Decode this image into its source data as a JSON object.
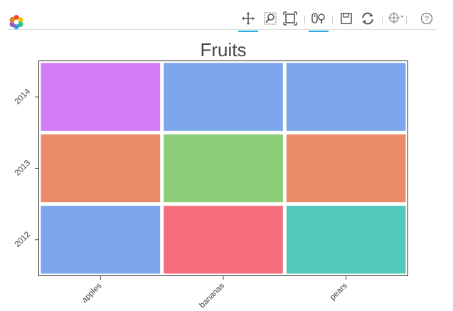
{
  "toolbar": {
    "logo": "bokeh-logo-icon",
    "tools": [
      {
        "name": "pan-tool",
        "icon": "pan-icon",
        "active": true
      },
      {
        "name": "box-zoom-tool",
        "icon": "box-zoom-icon",
        "active": false
      },
      {
        "name": "resize-tool",
        "icon": "resize-icon",
        "active": false
      },
      {
        "name": "wheel-zoom-tool",
        "icon": "wheel-zoom-icon",
        "active": true
      },
      {
        "name": "save-tool",
        "icon": "save-icon",
        "active": false
      },
      {
        "name": "reset-tool",
        "icon": "reset-icon",
        "active": false
      },
      {
        "name": "crosshair-tool",
        "icon": "crosshair-icon",
        "active": false
      },
      {
        "name": "help-tool",
        "icon": "help-icon",
        "active": false
      }
    ]
  },
  "chart_data": {
    "type": "heatmap",
    "title": "Fruits",
    "xlabel": "",
    "ylabel": "",
    "x_categories": [
      "apples",
      "bananas",
      "pears"
    ],
    "y_categories": [
      "2012",
      "2013",
      "2014"
    ],
    "cells": [
      {
        "x": "apples",
        "y": "2014",
        "color": "#d47bf7"
      },
      {
        "x": "bananas",
        "y": "2014",
        "color": "#7ba5ec"
      },
      {
        "x": "pears",
        "y": "2014",
        "color": "#7ba5ec"
      },
      {
        "x": "apples",
        "y": "2013",
        "color": "#ea8a68"
      },
      {
        "x": "bananas",
        "y": "2013",
        "color": "#8ecd77"
      },
      {
        "x": "pears",
        "y": "2013",
        "color": "#ea8a68"
      },
      {
        "x": "apples",
        "y": "2012",
        "color": "#7ba5ec"
      },
      {
        "x": "bananas",
        "y": "2012",
        "color": "#f66e7c"
      },
      {
        "x": "pears",
        "y": "2012",
        "color": "#52c7bb"
      }
    ],
    "grid": false,
    "legend": "none"
  }
}
